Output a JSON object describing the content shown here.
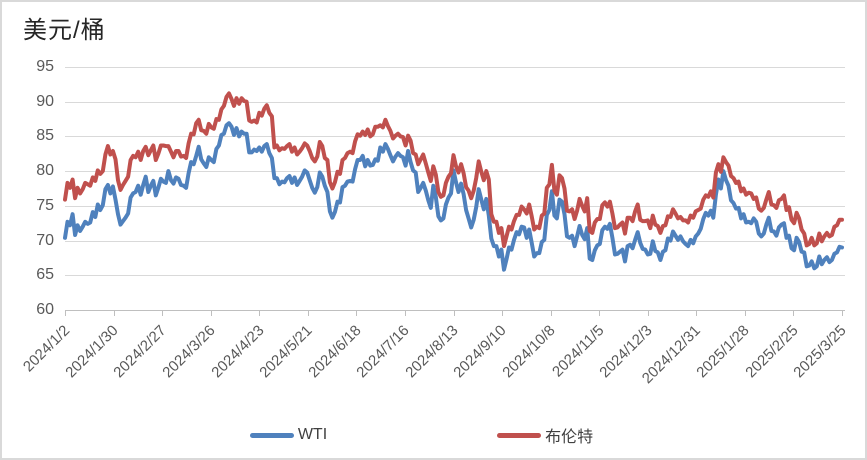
{
  "chart": {
    "title": "美元/桶",
    "legend_items": [
      {
        "label": "WTI",
        "color": "#4F81BD"
      },
      {
        "label": "布伦特",
        "color": "#C0504D"
      }
    ]
  },
  "colors": {
    "wti_blue": "#4F81BD",
    "brent_red": "#C0504D",
    "gridline": "#D9D9D9",
    "axis": "#BFBFBF",
    "tick_label": "#595959",
    "title_text": "#262626",
    "frame_border": "#D9D9D9"
  },
  "chart_data": {
    "type": "line",
    "title": "美元/桶",
    "ylabel": "美元/桶",
    "xlabel": "",
    "ylim": [
      60,
      95
    ],
    "yticks": [
      95,
      90,
      85,
      80,
      75,
      70,
      65,
      60
    ],
    "grid": "horizontal",
    "legend_position": "bottom",
    "x_tick_labels": [
      "2024/1/2",
      "2024/1/30",
      "2024/2/27",
      "2024/3/26",
      "2024/4/23",
      "2024/5/21",
      "2024/6/18",
      "2024/7/16",
      "2024/8/13",
      "2024/9/10",
      "2024/10/8",
      "2024/11/5",
      "2024/12/3",
      "2024/12/31",
      "2025/1/28",
      "2025/2/25",
      "2025/3/25"
    ],
    "series": [
      {
        "name": "WTI",
        "color": "#4F81BD",
        "values": [
          70.4,
          72.7,
          72.2,
          73.8,
          70.8,
          72.2,
          71.4,
          72.0,
          72.7,
          72.4,
          72.6,
          74.1,
          73.4,
          75.2,
          74.4,
          75.1,
          77.4,
          78.0,
          76.8,
          77.8,
          75.9,
          73.8,
          72.3,
          72.8,
          73.3,
          73.9,
          76.2,
          76.8,
          77.0,
          77.9,
          76.6,
          78.0,
          79.2,
          77.0,
          77.9,
          78.6,
          76.5,
          77.6,
          78.9,
          78.5,
          78.3,
          80.0,
          78.7,
          78.2,
          79.1,
          78.9,
          78.0,
          77.9,
          77.6,
          79.7,
          81.3,
          81.0,
          82.2,
          83.5,
          81.7,
          81.1,
          80.6,
          82.0,
          81.6,
          81.3,
          83.2,
          83.7,
          85.2,
          85.4,
          86.6,
          86.9,
          86.4,
          85.2,
          86.2,
          85.0,
          85.7,
          85.4,
          85.4,
          82.7,
          82.7,
          83.1,
          82.9,
          83.4,
          82.8,
          83.6,
          83.9,
          82.6,
          81.9,
          79.0,
          79.0,
          78.1,
          78.5,
          78.4,
          79.0,
          79.3,
          78.3,
          79.1,
          78.0,
          78.6,
          79.2,
          80.1,
          79.8,
          78.7,
          77.6,
          76.9,
          77.7,
          79.8,
          79.2,
          77.9,
          77.0,
          74.2,
          73.3,
          74.1,
          75.6,
          75.5,
          77.7,
          77.9,
          78.5,
          78.6,
          78.5,
          80.3,
          81.6,
          81.6,
          82.2,
          80.7,
          81.6,
          80.8,
          80.9,
          81.7,
          81.5,
          83.4,
          82.8,
          83.9,
          83.2,
          82.3,
          81.4,
          82.1,
          82.6,
          82.2,
          82.0,
          80.8,
          82.9,
          81.3,
          80.1,
          79.8,
          77.0,
          77.6,
          78.3,
          77.2,
          75.8,
          74.7,
          77.9,
          76.3,
          73.5,
          72.9,
          73.2,
          75.2,
          76.2,
          76.8,
          80.1,
          78.4,
          77.0,
          78.2,
          76.7,
          74.4,
          73.2,
          71.9,
          73.0,
          74.8,
          77.4,
          75.9,
          74.5,
          76.0,
          73.6,
          70.3,
          69.2,
          69.2,
          67.7,
          68.7,
          65.8,
          67.3,
          69.0,
          68.7,
          70.1,
          71.2,
          70.9,
          72.0,
          71.9,
          70.4,
          71.6,
          69.7,
          67.7,
          68.2,
          68.2,
          69.8,
          70.1,
          73.7,
          74.4,
          77.1,
          73.6,
          73.2,
          75.9,
          75.6,
          73.8,
          70.6,
          70.4,
          70.7,
          69.2,
          70.6,
          72.1,
          70.8,
          70.2,
          71.8,
          67.4,
          67.2,
          68.6,
          69.3,
          69.5,
          71.5,
          72.0,
          71.7,
          72.4,
          70.4,
          68.0,
          68.1,
          68.4,
          68.7,
          67.0,
          69.2,
          69.4,
          68.9,
          70.1,
          71.2,
          69.7,
          68.8,
          68.7,
          68.0,
          68.1,
          69.9,
          68.5,
          68.3,
          67.2,
          68.4,
          68.6,
          70.3,
          70.0,
          71.3,
          70.7,
          70.1,
          70.6,
          69.9,
          69.5,
          69.2,
          70.1,
          69.6,
          70.6,
          71.0,
          71.7,
          73.1,
          74.0,
          73.6,
          74.3,
          73.3,
          76.6,
          78.8,
          77.5,
          80.0,
          78.7,
          77.9,
          75.8,
          75.4,
          74.6,
          74.7,
          73.2,
          73.8,
          72.6,
          72.7,
          72.5,
          73.2,
          72.7,
          71.0,
          70.6,
          71.0,
          72.3,
          73.3,
          71.4,
          71.3,
          70.7,
          71.9,
          72.3,
          72.5,
          70.4,
          70.7,
          68.9,
          68.6,
          70.4,
          69.8,
          68.4,
          68.3,
          66.3,
          66.4,
          67.0,
          66.0,
          66.3,
          67.7,
          66.6,
          67.2,
          67.6,
          66.9,
          67.2,
          68.1,
          68.3,
          69.1,
          69.0
        ]
      },
      {
        "name": "布伦特",
        "color": "#C0504D",
        "values": [
          75.9,
          78.3,
          77.6,
          78.8,
          76.1,
          77.6,
          76.8,
          77.4,
          78.3,
          78.1,
          77.9,
          79.1,
          78.6,
          80.1,
          79.6,
          80.0,
          82.4,
          83.6,
          82.4,
          82.9,
          81.7,
          78.7,
          77.3,
          78.0,
          78.6,
          79.2,
          81.6,
          82.2,
          82.0,
          82.8,
          81.6,
          82.9,
          83.5,
          82.3,
          83.0,
          83.7,
          81.6,
          82.5,
          83.7,
          83.7,
          83.6,
          83.6,
          82.8,
          82.0,
          82.9,
          82.9,
          82.1,
          82.2,
          81.9,
          84.0,
          85.4,
          85.3,
          86.9,
          87.4,
          85.9,
          85.8,
          85.4,
          86.8,
          86.3,
          86.1,
          87.5,
          87.4,
          88.9,
          89.4,
          90.7,
          91.2,
          90.4,
          89.4,
          90.5,
          89.7,
          90.5,
          90.1,
          90.0,
          87.3,
          87.1,
          87.3,
          87.0,
          88.4,
          88.0,
          89.0,
          89.5,
          88.4,
          87.9,
          83.4,
          83.7,
          83.0,
          83.3,
          83.2,
          83.6,
          83.9,
          82.8,
          83.4,
          82.4,
          82.8,
          83.3,
          84.0,
          83.7,
          82.9,
          81.9,
          81.4,
          82.1,
          84.2,
          83.6,
          81.9,
          81.6,
          78.4,
          77.5,
          78.4,
          79.9,
          79.6,
          81.6,
          81.9,
          82.6,
          82.8,
          82.6,
          84.3,
          85.3,
          85.1,
          85.7,
          85.2,
          86.0,
          85.0,
          85.3,
          86.4,
          86.4,
          86.6,
          86.3,
          87.4,
          86.5,
          85.8,
          84.7,
          85.1,
          85.4,
          85.0,
          84.9,
          83.7,
          85.1,
          84.4,
          82.6,
          82.4,
          81.0,
          81.7,
          82.4,
          81.1,
          79.8,
          78.6,
          80.7,
          79.5,
          77.0,
          76.3,
          76.5,
          78.3,
          79.2,
          79.7,
          82.3,
          80.7,
          79.8,
          81.0,
          79.7,
          77.7,
          77.2,
          76.1,
          77.2,
          79.0,
          81.4,
          79.9,
          78.7,
          80.0,
          78.8,
          73.8,
          72.7,
          72.7,
          71.1,
          71.8,
          69.2,
          70.6,
          72.0,
          71.6,
          72.8,
          73.7,
          73.7,
          74.9,
          74.5,
          73.9,
          75.2,
          73.5,
          71.6,
          72.0,
          71.8,
          73.6,
          73.9,
          77.6,
          78.1,
          80.9,
          77.2,
          76.6,
          79.4,
          79.0,
          77.5,
          74.3,
          74.2,
          74.5,
          73.1,
          74.3,
          76.0,
          75.0,
          74.2,
          76.1,
          71.4,
          71.1,
          72.6,
          73.1,
          73.1,
          75.1,
          75.5,
          74.9,
          75.6,
          73.9,
          71.8,
          71.9,
          72.3,
          72.6,
          71.0,
          73.3,
          73.3,
          72.8,
          74.2,
          75.2,
          73.0,
          72.8,
          72.8,
          72.9,
          71.8,
          73.6,
          72.3,
          72.1,
          71.1,
          72.1,
          72.2,
          73.5,
          73.4,
          74.5,
          73.9,
          73.2,
          73.4,
          72.9,
          72.9,
          72.6,
          73.6,
          73.3,
          74.2,
          74.4,
          74.6,
          75.9,
          76.5,
          76.3,
          77.1,
          76.2,
          79.8,
          81.0,
          79.9,
          82.0,
          81.3,
          80.8,
          79.3,
          79.0,
          78.3,
          78.5,
          77.1,
          77.5,
          76.6,
          76.9,
          76.8,
          76.0,
          76.2,
          74.6,
          74.3,
          74.7,
          75.9,
          77.0,
          75.2,
          75.1,
          74.7,
          75.8,
          76.0,
          76.5,
          74.4,
          74.8,
          73.0,
          72.5,
          74.0,
          73.2,
          71.6,
          71.0,
          69.3,
          69.5,
          70.4,
          69.3,
          69.6,
          71.0,
          69.9,
          70.6,
          71.1,
          70.6,
          70.8,
          72.0,
          72.2,
          73.0,
          73.0
        ]
      }
    ]
  }
}
